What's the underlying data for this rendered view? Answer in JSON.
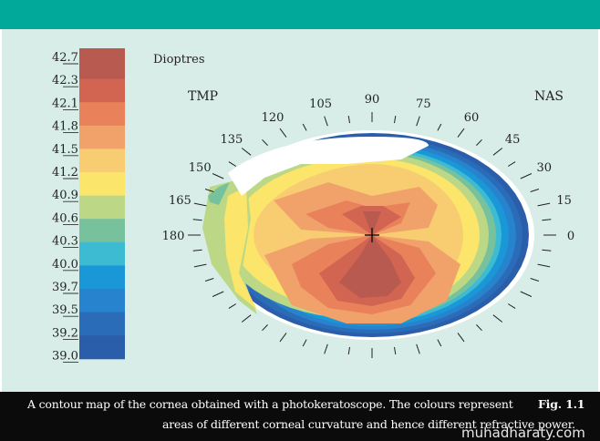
{
  "diagram": {
    "unit_label": "Dioptres",
    "left_side_label": "TMP",
    "right_side_label": "NAS",
    "legend": [
      {
        "value": "42.7",
        "color": "#b85a50"
      },
      {
        "value": "42.3",
        "color": "#d26552"
      },
      {
        "value": "42.1",
        "color": "#e9815a"
      },
      {
        "value": "41.8",
        "color": "#f1a26a"
      },
      {
        "value": "41.5",
        "color": "#f8cd72"
      },
      {
        "value": "41.2",
        "color": "#fbe56a"
      },
      {
        "value": "40.9",
        "color": "#bcd887"
      },
      {
        "value": "40.6",
        "color": "#77c29c"
      },
      {
        "value": "40.3",
        "color": "#3dbbd2"
      },
      {
        "value": "40.0",
        "color": "#1a97d6"
      },
      {
        "value": "39.7",
        "color": "#2783cd"
      },
      {
        "value": "39.5",
        "color": "#2a6cb8"
      },
      {
        "value": "39.2",
        "color": "#2a5eaa"
      },
      {
        "value": "39.0",
        "color": "#2a5eaa"
      }
    ],
    "angle_labels": [
      "0",
      "15",
      "30",
      "45",
      "60",
      "75",
      "90",
      "105",
      "120",
      "135",
      "150",
      "165",
      "180"
    ]
  },
  "caption": {
    "line1": "A contour map of the cornea obtained with a photokeratoscope. The  colours represent",
    "fig_label": "Fig. 1.1",
    "line2": "areas of different corneal curvature and hence different refractive power."
  },
  "watermark": "muhadharaty.com"
}
